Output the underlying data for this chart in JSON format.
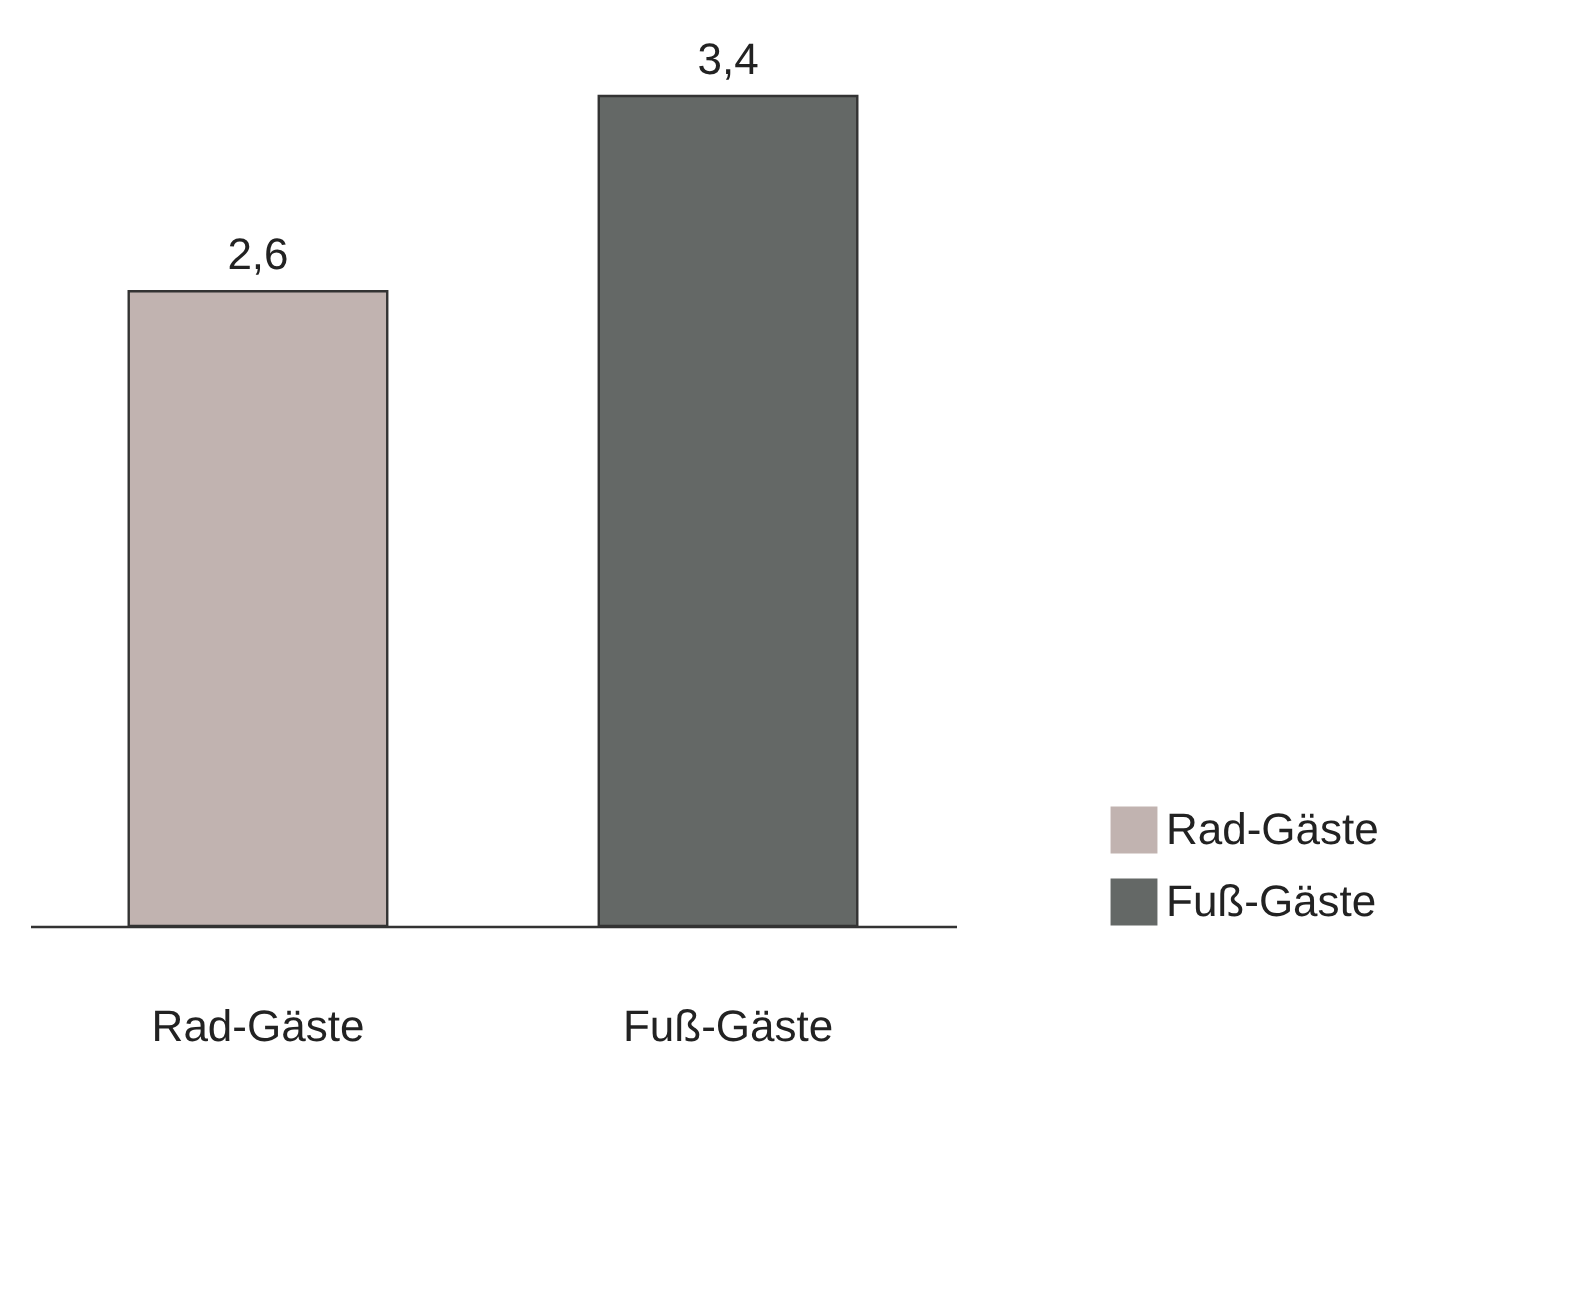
{
  "chart_data": {
    "type": "bar",
    "categories": [
      "Rad-Gäste",
      "Fuß-Gäste"
    ],
    "stacked": true,
    "series": [
      {
        "name": "Rad-Gäste",
        "color": "#c1b3b0",
        "values": [
          2.6,
          null
        ],
        "value_labels": [
          "2,6",
          null
        ]
      },
      {
        "name": "Fuß-Gäste",
        "color": "#646866",
        "values": [
          null,
          3.4
        ],
        "value_labels": [
          null,
          "3,4"
        ]
      }
    ],
    "legend": "bottom right",
    "grid": false
  }
}
